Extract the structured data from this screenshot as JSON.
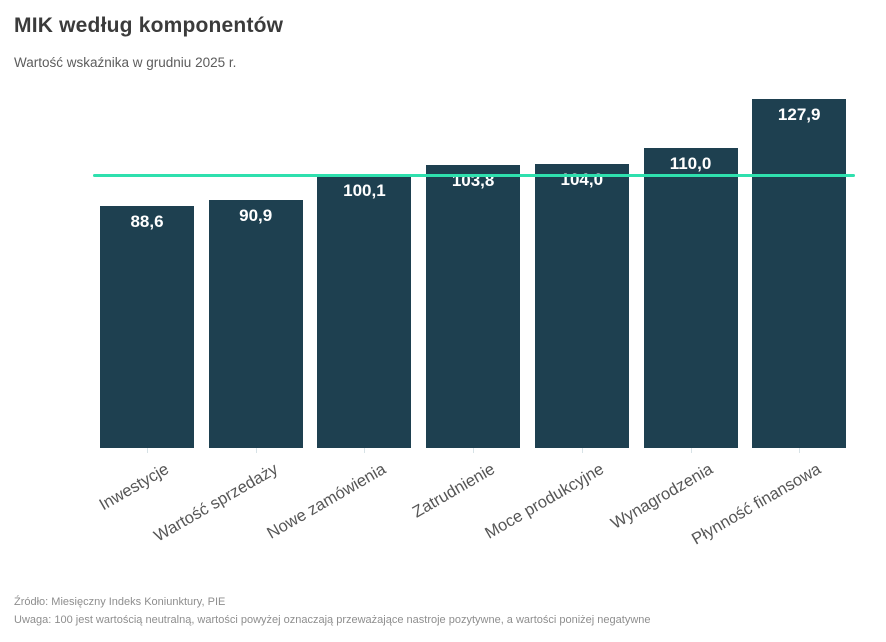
{
  "header": {
    "title": "MIK według komponentów",
    "subtitle": "Wartość wskaźnika w grudniu 2025 r."
  },
  "footer": {
    "source": "Źródło: Miesięczny Indeks Koniunktury, PIE",
    "note": "Uwaga: 100 jest wartością neutralną, wartości powyżej oznaczają przeważające nastroje pozytywne, a wartości poniżej negatywne"
  },
  "chart_data": {
    "type": "bar",
    "title": "MIK według komponentów",
    "subtitle": "Wartość wskaźnika w grudniu 2025 r.",
    "categories": [
      "Inwestycje",
      "Wartość sprzedaży",
      "Nowe zamówienia",
      "Zatrudnienie",
      "Moce produkcyjne",
      "Wynagrodzenia",
      "Płynność finansowa"
    ],
    "values": [
      88.6,
      90.9,
      100.1,
      103.8,
      104.0,
      110.0,
      127.9
    ],
    "value_labels": [
      "88,6",
      "90,9",
      "100,1",
      "103,8",
      "104,0",
      "110,0",
      "127,9"
    ],
    "reference_line": {
      "value": 100,
      "color": "#2fe0ae"
    },
    "ylim": [
      0,
      127.9
    ],
    "bar_color": "#1e4050",
    "value_label_color": "#ffffff",
    "xlabel": "",
    "ylabel": "",
    "grid": false,
    "legend": false,
    "x_tick_rotation": -30
  }
}
